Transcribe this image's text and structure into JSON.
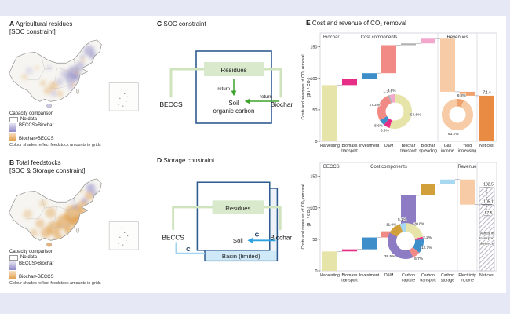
{
  "panel_a": {
    "tag": "A",
    "title_line1": "Agricultural residues",
    "title_line2": "[SOC constraint]"
  },
  "panel_b": {
    "tag": "B",
    "title_line1": "Total feedstocks",
    "title_line2": "[SOC & Storage constraint]"
  },
  "map_legend": {
    "title": "Capacity comparison",
    "no_data": "No data",
    "beccs_gt_biochar": "BECCS>Biochar",
    "biochar_gt_beccs": "Biochar>BECCS",
    "caption": "Colour shades reflect feedstock amounts in grids",
    "purple": "#8e88c6",
    "orange": "#df9a43"
  },
  "panel_c": {
    "tag": "C",
    "title": "SOC constraint",
    "residues": "Residues",
    "soil_line1": "Soil",
    "soil_line2": "organic carbon",
    "beccs": "BECCS",
    "biochar": "Biochar",
    "return_down": "return",
    "return_side": "return"
  },
  "panel_d": {
    "tag": "D",
    "title": "Storage constraint",
    "residues": "Residues",
    "soil": "Soil",
    "basin": "Basin (limited)",
    "beccs": "BECCS",
    "biochar": "Biochar",
    "c_beccs": "C",
    "c_biochar": "C"
  },
  "panel_e": {
    "tag": "E",
    "title": "Cost and revenue of CO₂ removal"
  },
  "chart_data": [
    {
      "type": "bar",
      "subtype": "waterfall",
      "group": "Biochar",
      "sections": [
        {
          "label": "Cost components",
          "from": 0,
          "to": 5
        },
        {
          "label": "Revenues",
          "from": 6,
          "to": 7
        }
      ],
      "ylabel": [
        "Costs and revenues of CO₂ removal",
        "($ t⁻¹ CO₂)"
      ],
      "yticks": [
        0,
        50,
        100,
        150
      ],
      "ymax": 172,
      "bars": [
        {
          "name": "Harvesting",
          "lines": [
            "Harvesting"
          ],
          "lo": 0,
          "hi": 89.3,
          "color": "#e7e4a9",
          "share_pct": 54.6
        },
        {
          "name": "Biomass transport",
          "lines": [
            "Biomass",
            "transport"
          ],
          "lo": 89.3,
          "hi": 99.0,
          "color": "#e62e87",
          "share_pct": 5.9
        },
        {
          "name": "Investment",
          "lines": [
            "Investment"
          ],
          "lo": 99.0,
          "hi": 108.2,
          "color": "#3d8ec9",
          "share_pct": 5.6
        },
        {
          "name": "O&M",
          "lines": [
            "O&M"
          ],
          "lo": 108.2,
          "hi": 152.7,
          "color": "#f18a84",
          "share_pct": 27.2
        },
        {
          "name": "Biochar transport",
          "lines": [
            "Biochar",
            "transport"
          ],
          "lo": 152.7,
          "hi": 155.5,
          "color": "#b1b1b1",
          "share_pct": 1.7
        },
        {
          "name": "Biochar spreading",
          "lines": [
            "Biochar",
            "spreading"
          ],
          "lo": 155.5,
          "hi": 163.0,
          "color": "#f2a8cd",
          "share_pct": 4.6
        },
        {
          "name": "Gas income",
          "lines": [
            "Gas",
            "income"
          ],
          "lo": 78.6,
          "hi": 163.0,
          "color": "#f7cba6",
          "share_pct": 93.2
        },
        {
          "name": "Yield increasing",
          "lines": [
            "Yield",
            "increasing"
          ],
          "lo": 72.4,
          "hi": 78.6,
          "color": "#f0a26e",
          "share_pct": 6.8
        },
        {
          "name": "Net cost",
          "lines": [
            "Net cost"
          ],
          "lo": 0,
          "hi": 72.4,
          "color": "#ea8b44",
          "value_label": "72.4"
        }
      ],
      "connectors": [
        89.3,
        99.0,
        108.2,
        152.7,
        155.5,
        163.0,
        78.6,
        72.4
      ],
      "donuts": [
        {
          "name": "biochar-cost-share",
          "cx_slot": 3.8,
          "cy": 106,
          "r": 22,
          "ir": 11.5,
          "values": [
            54.6,
            5.9,
            5.6,
            27.2,
            1.7,
            4.6
          ],
          "labels": [
            "54.6%",
            "5.9%",
            "5.6%",
            "27.2%",
            "1.7%",
            "4.6%"
          ],
          "colors": [
            "#e7e4a9",
            "#e62e87",
            "#3d8ec9",
            "#f18a84",
            "#b1b1b1",
            "#f2a8cd"
          ]
        },
        {
          "name": "biochar-revenue-share",
          "cx_slot": 7.0,
          "cy": 110,
          "r": 20,
          "ir": 10.5,
          "values": [
            6.8,
            93.2
          ],
          "labels": [
            "6.8%",
            "93.2%"
          ],
          "colors": [
            "#f0a26e",
            "#f7cba6"
          ]
        }
      ]
    },
    {
      "type": "bar",
      "subtype": "waterfall",
      "group": "BECCS",
      "sections": [
        {
          "label": "Cost components",
          "from": 0,
          "to": 6
        },
        {
          "label": "Revenue",
          "from": 7,
          "to": 7
        }
      ],
      "ylabel": [
        "Costs and revenues of CO₂ removal",
        "($ t⁻¹ CO₂)"
      ],
      "yticks": [
        0,
        50,
        100,
        150
      ],
      "ymax": 172,
      "bars": [
        {
          "name": "Harvesting",
          "lines": [
            "Harvesting"
          ],
          "lo": 0,
          "hi": 30.8,
          "color": "#e7e4a9",
          "share_pct": 20.8
        },
        {
          "name": "Biomass transport",
          "lines": [
            "Biomass",
            "transport"
          ],
          "lo": 30.8,
          "hi": 34.1,
          "color": "#e62e87",
          "share_pct": 2.2
        },
        {
          "name": "Investment",
          "lines": [
            "Investment"
          ],
          "lo": 34.1,
          "hi": 52.9,
          "color": "#3d8ec9",
          "share_pct": 12.7
        },
        {
          "name": "O&M",
          "lines": [
            "O&M"
          ],
          "lo": 52.9,
          "hi": 62.8,
          "color": "#f18a84",
          "share_pct": 6.7
        },
        {
          "name": "Carbon capture",
          "lines": [
            "Carbon",
            "capture"
          ],
          "lo": 62.8,
          "hi": 119.8,
          "color": "#8d7cc4",
          "share_pct": 38.5
        },
        {
          "name": "Carbon transport",
          "lines": [
            "Carbon",
            "transport"
          ],
          "lo": 119.8,
          "hi": 137.4,
          "color": "#d2a03b",
          "share_pct": 11.9
        },
        {
          "name": "Carbon storage",
          "lines": [
            "Carbon",
            "storage"
          ],
          "lo": 137.4,
          "hi": 144.9,
          "color": "#a9d9f1",
          "share_pct": 5.1
        },
        {
          "name": "Electricity income",
          "lines": [
            "Electricity",
            "income"
          ],
          "lo": 105.1,
          "hi": 144.9,
          "color": "#f7cba6"
        },
        {
          "name": "Net cost",
          "lines": [
            "Net cost"
          ],
          "lo": 0,
          "hi": 132.5,
          "hatch": true
        }
      ],
      "connectors": [
        30.8,
        34.1,
        52.9,
        62.8,
        119.8,
        137.4,
        144.9,
        105.1
      ],
      "net_cost": {
        "labels": [
          {
            "text": "132.5",
            "v": 132.5
          },
          {
            "text": "105.1",
            "v": 105.1
          },
          {
            "text": "87.5",
            "v": 87.5
          }
        ],
        "note_lines": [
          "varies in",
          "transport",
          "distance"
        ],
        "whisker_top": 132.5,
        "whisker_mid": 105.1,
        "whisker_bottom": 87.5
      },
      "donuts": [
        {
          "name": "beccs-cost-share",
          "cx_slot": 4.36,
          "cy": 106,
          "r": 23,
          "ir": 12,
          "values": [
            20.8,
            2.2,
            12.7,
            6.7,
            38.5,
            11.9,
            5.1
          ],
          "labels": [
            "20.8%",
            "2.2%",
            "12.7%",
            "6.7%",
            "38.5%",
            "11.9%",
            "5.1%"
          ],
          "colors": [
            "#e7e4a9",
            "#e62e87",
            "#3d8ec9",
            "#f18a84",
            "#8d7cc4",
            "#d2a03b",
            "#a9d9f1"
          ]
        }
      ]
    }
  ]
}
